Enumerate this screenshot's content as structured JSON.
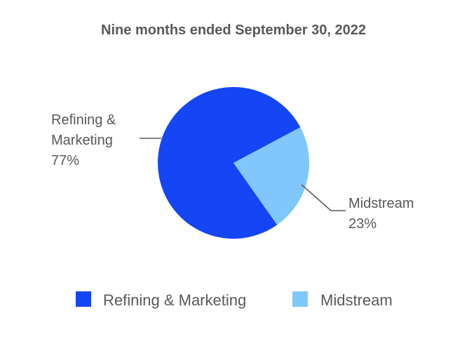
{
  "chart_data": {
    "type": "pie",
    "title": "Nine months ended September 30, 2022",
    "slices": [
      {
        "name": "Refining & Marketing",
        "value": 77,
        "label": "77%",
        "color": "#1446f5"
      },
      {
        "name": "Midstream",
        "value": 23,
        "label": "23%",
        "color": "#80c8fb"
      }
    ],
    "legend": {
      "position": "bottom",
      "entries": [
        "Refining & Marketing",
        "Midstream"
      ]
    }
  }
}
